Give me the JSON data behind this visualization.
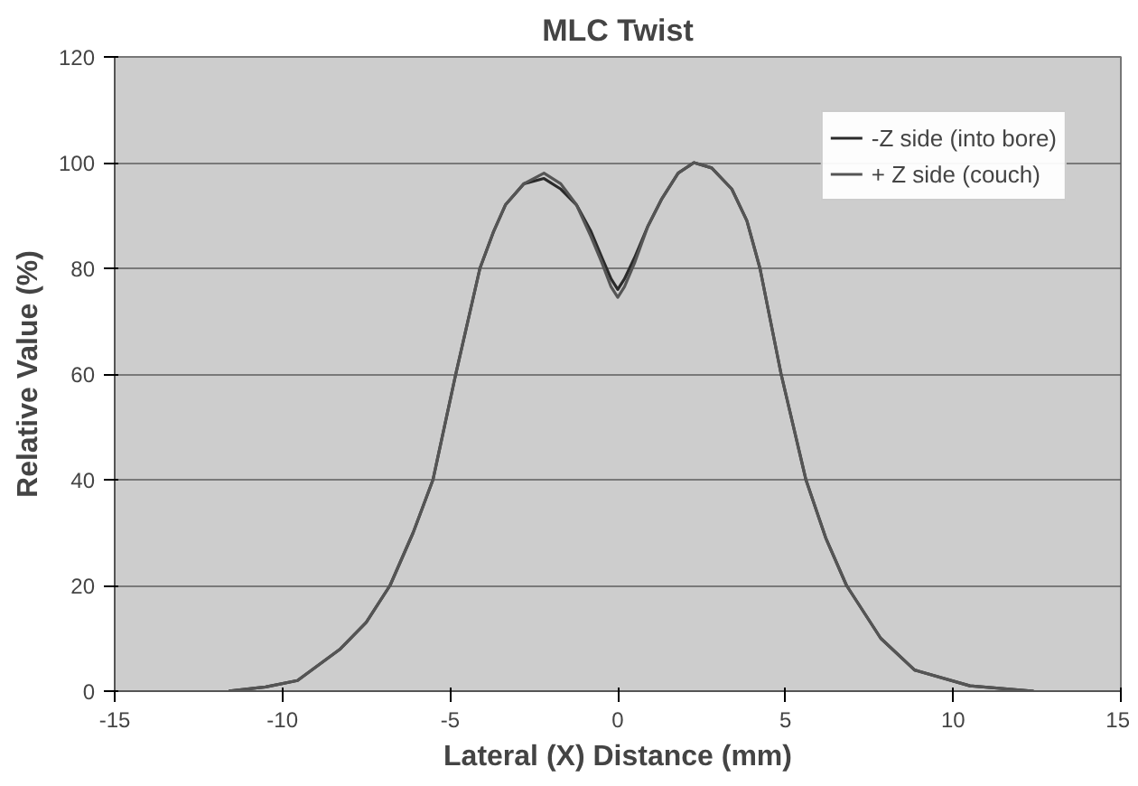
{
  "chart_data": {
    "type": "line",
    "title": "MLC Twist",
    "xlabel": "Lateral (X) Distance (mm)",
    "ylabel": "Relative Value (%)",
    "x": [
      -11.6,
      -10.5,
      -9.55,
      -8.27,
      -7.5,
      -6.79,
      -6.1,
      -5.51,
      -4.83,
      -4.11,
      -3.7,
      -3.35,
      -2.8,
      -2.2,
      -1.7,
      -1.23,
      -0.8,
      -0.47,
      -0.2,
      0,
      0.2,
      0.5,
      0.9,
      1.3,
      1.8,
      2.27,
      2.8,
      3.4,
      3.85,
      4.24,
      4.87,
      5.61,
      6.2,
      6.82,
      7.84,
      8.85,
      10.5,
      12.4
    ],
    "series": [
      {
        "name": "-Z side (into bore)",
        "color": "#2a2a2a",
        "values": [
          0,
          0.8,
          2,
          8,
          13,
          20,
          30,
          40,
          60,
          80,
          87,
          92,
          96,
          97,
          95,
          92,
          87,
          82,
          78,
          76,
          78,
          82,
          88,
          93,
          98,
          100,
          99,
          95,
          89,
          80,
          60,
          40,
          29,
          20,
          10,
          4,
          1,
          0
        ]
      },
      {
        "name": "+ Z side (couch)",
        "color": "#555555",
        "values": [
          0,
          0.8,
          2,
          8,
          13,
          20,
          30,
          40,
          60,
          80,
          87,
          92,
          96,
          98,
          96,
          92,
          86,
          81,
          76.5,
          74.5,
          76.5,
          81,
          88,
          93,
          98,
          100,
          99,
          95,
          89,
          80,
          60,
          40,
          29,
          20,
          10,
          4,
          1,
          0
        ]
      }
    ],
    "xlim": [
      -15,
      15
    ],
    "xticks": [
      -15,
      -10,
      -5,
      0,
      5,
      10,
      15
    ],
    "ylim": [
      0,
      120
    ],
    "yticks": [
      0,
      20,
      40,
      60,
      80,
      100,
      120
    ],
    "grid": "y",
    "legend": "top right",
    "line_style": "solid",
    "marker": "none"
  }
}
